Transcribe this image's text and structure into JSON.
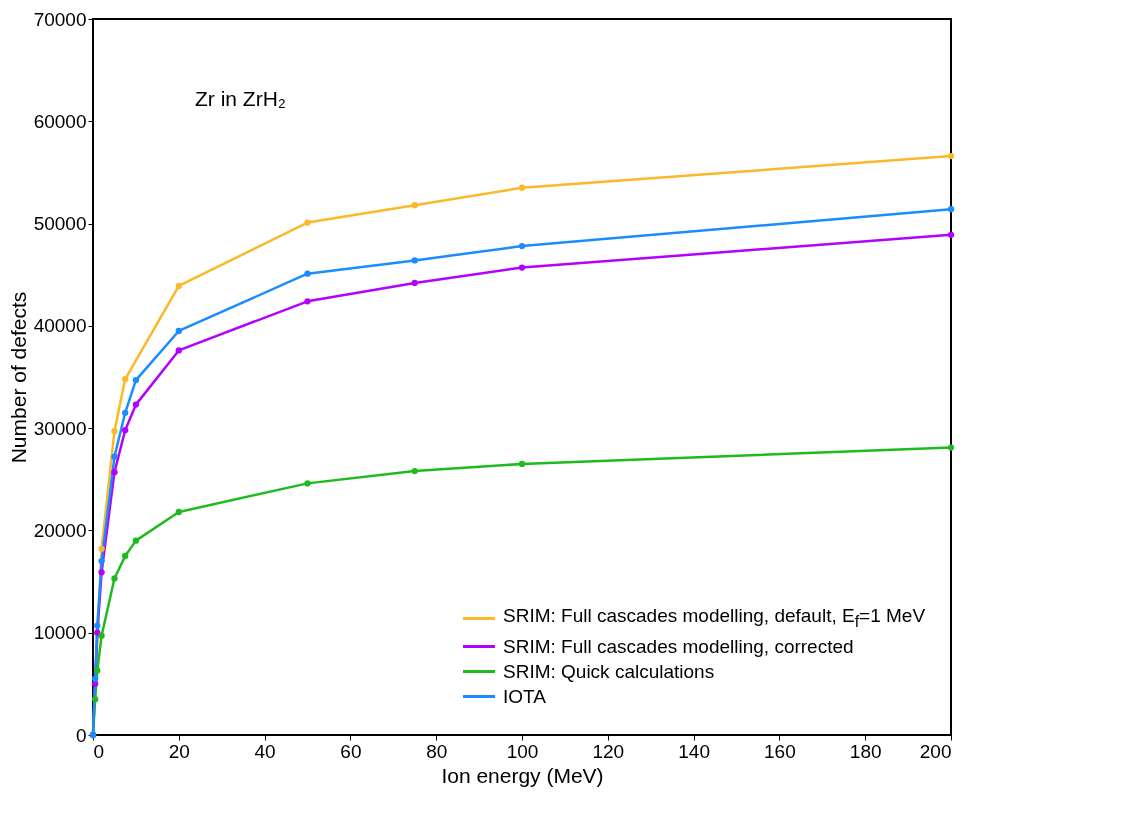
{
  "chart_data": {
    "type": "line",
    "xlabel": "Ion energy (MeV)",
    "ylabel": "Number of defects",
    "annotations": [
      "Zr in ZrH₂"
    ],
    "x": [
      0,
      0.5,
      1,
      2,
      5,
      7.5,
      10,
      20,
      50,
      75,
      100,
      200
    ],
    "series": [
      {
        "name": "SRIM: Full cascades modelling, default, E$_{f}$=1 MeV",
        "color": "#fbb829",
        "values": [
          0,
          null,
          null,
          18200,
          29700,
          34800,
          null,
          43900,
          50100,
          51800,
          53500,
          56600
        ]
      },
      {
        "name": "SRIM: Full cascades modelling, corrected",
        "color": "#b300ff",
        "values": [
          0,
          5000,
          10000,
          15900,
          25700,
          29800,
          32300,
          37600,
          42400,
          44200,
          45700,
          48900
        ]
      },
      {
        "name": "SRIM: Quick calculations",
        "color": "#1fba1f",
        "values": [
          0,
          3500,
          6300,
          9700,
          15300,
          17500,
          19000,
          21800,
          24600,
          25800,
          26500,
          28100
        ]
      },
      {
        "name": "IOTA",
        "color": "#1a8cff",
        "values": [
          0,
          5500,
          10700,
          17000,
          27200,
          31500,
          34700,
          39500,
          45100,
          46400,
          47800,
          51400
        ]
      }
    ],
    "xlim": [
      0,
      200
    ],
    "xticks": [
      0,
      20,
      40,
      60,
      80,
      100,
      120,
      140,
      160,
      180,
      200
    ],
    "ylim": [
      0,
      70000
    ],
    "yticks": [
      0,
      10000,
      20000,
      30000,
      40000,
      50000,
      60000,
      70000
    ],
    "grid": false,
    "legend": "bottom right",
    "marker": "circle",
    "line_style": "solid"
  }
}
